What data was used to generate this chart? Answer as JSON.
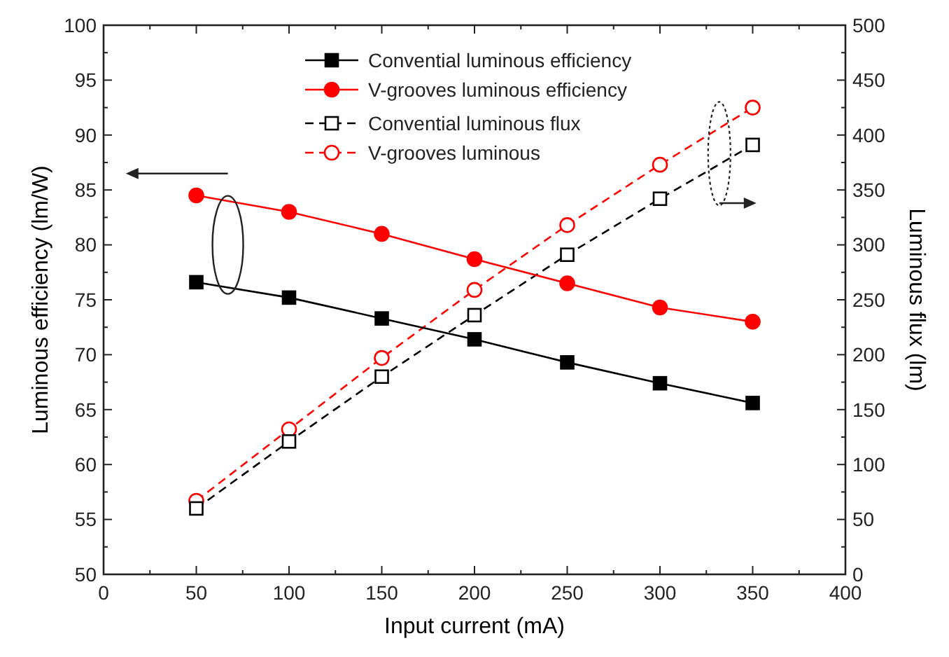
{
  "chart_data": {
    "type": "line",
    "xlabel": "Input current (mA)",
    "ylabel": "Luminous efficiency (lm/W)",
    "y2label": "Luminous flux (lm)",
    "x": [
      50,
      100,
      150,
      200,
      250,
      300,
      350
    ],
    "xlim": [
      0,
      400
    ],
    "xticks": [
      0,
      50,
      100,
      150,
      200,
      250,
      300,
      350,
      400
    ],
    "ylim": [
      50,
      100
    ],
    "yticks": [
      50,
      55,
      60,
      65,
      70,
      75,
      80,
      85,
      90,
      95,
      100
    ],
    "y2lim": [
      0,
      500
    ],
    "y2ticks": [
      0,
      50,
      100,
      150,
      200,
      250,
      300,
      350,
      400,
      450,
      500
    ],
    "grid": false,
    "legend": "top",
    "series": [
      {
        "name": "Convential luminous efficiency",
        "color": "#000000",
        "marker": "square",
        "line_style": "solid",
        "values": [
          76.6,
          75.2,
          73.3,
          71.4,
          69.3,
          67.4,
          65.6
        ]
      },
      {
        "name": "V-grooves luminous efficiency",
        "color": "#ff0000",
        "marker": "circle",
        "line_style": "solid",
        "values": [
          84.5,
          83.0,
          81.0,
          78.7,
          76.5,
          74.3,
          73.0
        ]
      },
      {
        "name": "Convential luminous flux",
        "color": "#000000",
        "marker": "square",
        "line_style": "dashed",
        "axis": "y2",
        "values": [
          60,
          121,
          180,
          236,
          291,
          342,
          391
        ]
      },
      {
        "name": "V-grooves luminous",
        "color": "#ff0000",
        "marker": "circle",
        "line_style": "dashed",
        "axis": "y2",
        "values": [
          67,
          132,
          197,
          259,
          318,
          373,
          425
        ]
      }
    ]
  }
}
